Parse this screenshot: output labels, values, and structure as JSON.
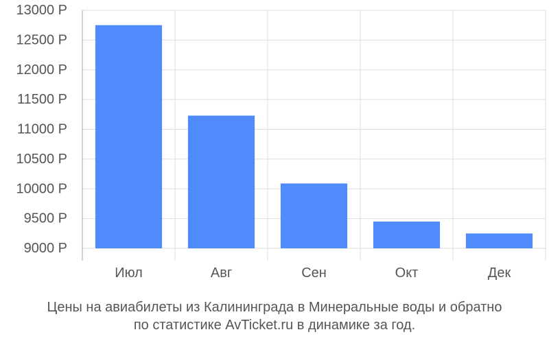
{
  "chart_data": {
    "type": "bar",
    "title": "",
    "xlabel": "",
    "ylabel": "",
    "categories": [
      "Июл",
      "Авг",
      "Сен",
      "Окт",
      "Дек"
    ],
    "values": [
      12750,
      11230,
      10090,
      9450,
      9250
    ],
    "ylim": [
      9000,
      13000
    ],
    "yticks": [
      9000,
      9500,
      10000,
      10500,
      11000,
      11500,
      12000,
      12500,
      13000
    ],
    "ytick_labels": [
      "9000 Р",
      "9500 Р",
      "10000 Р",
      "10500 Р",
      "11000 Р",
      "11500 Р",
      "12000 Р",
      "12500 Р",
      "13000 Р"
    ],
    "grid": true,
    "bar_color": "#4f8bfa"
  },
  "caption": {
    "line1": "Цены на авиабилеты из Калининграда в Минеральные воды и обратно",
    "line2": "по статистике AvTicket.ru в динамике за год."
  }
}
